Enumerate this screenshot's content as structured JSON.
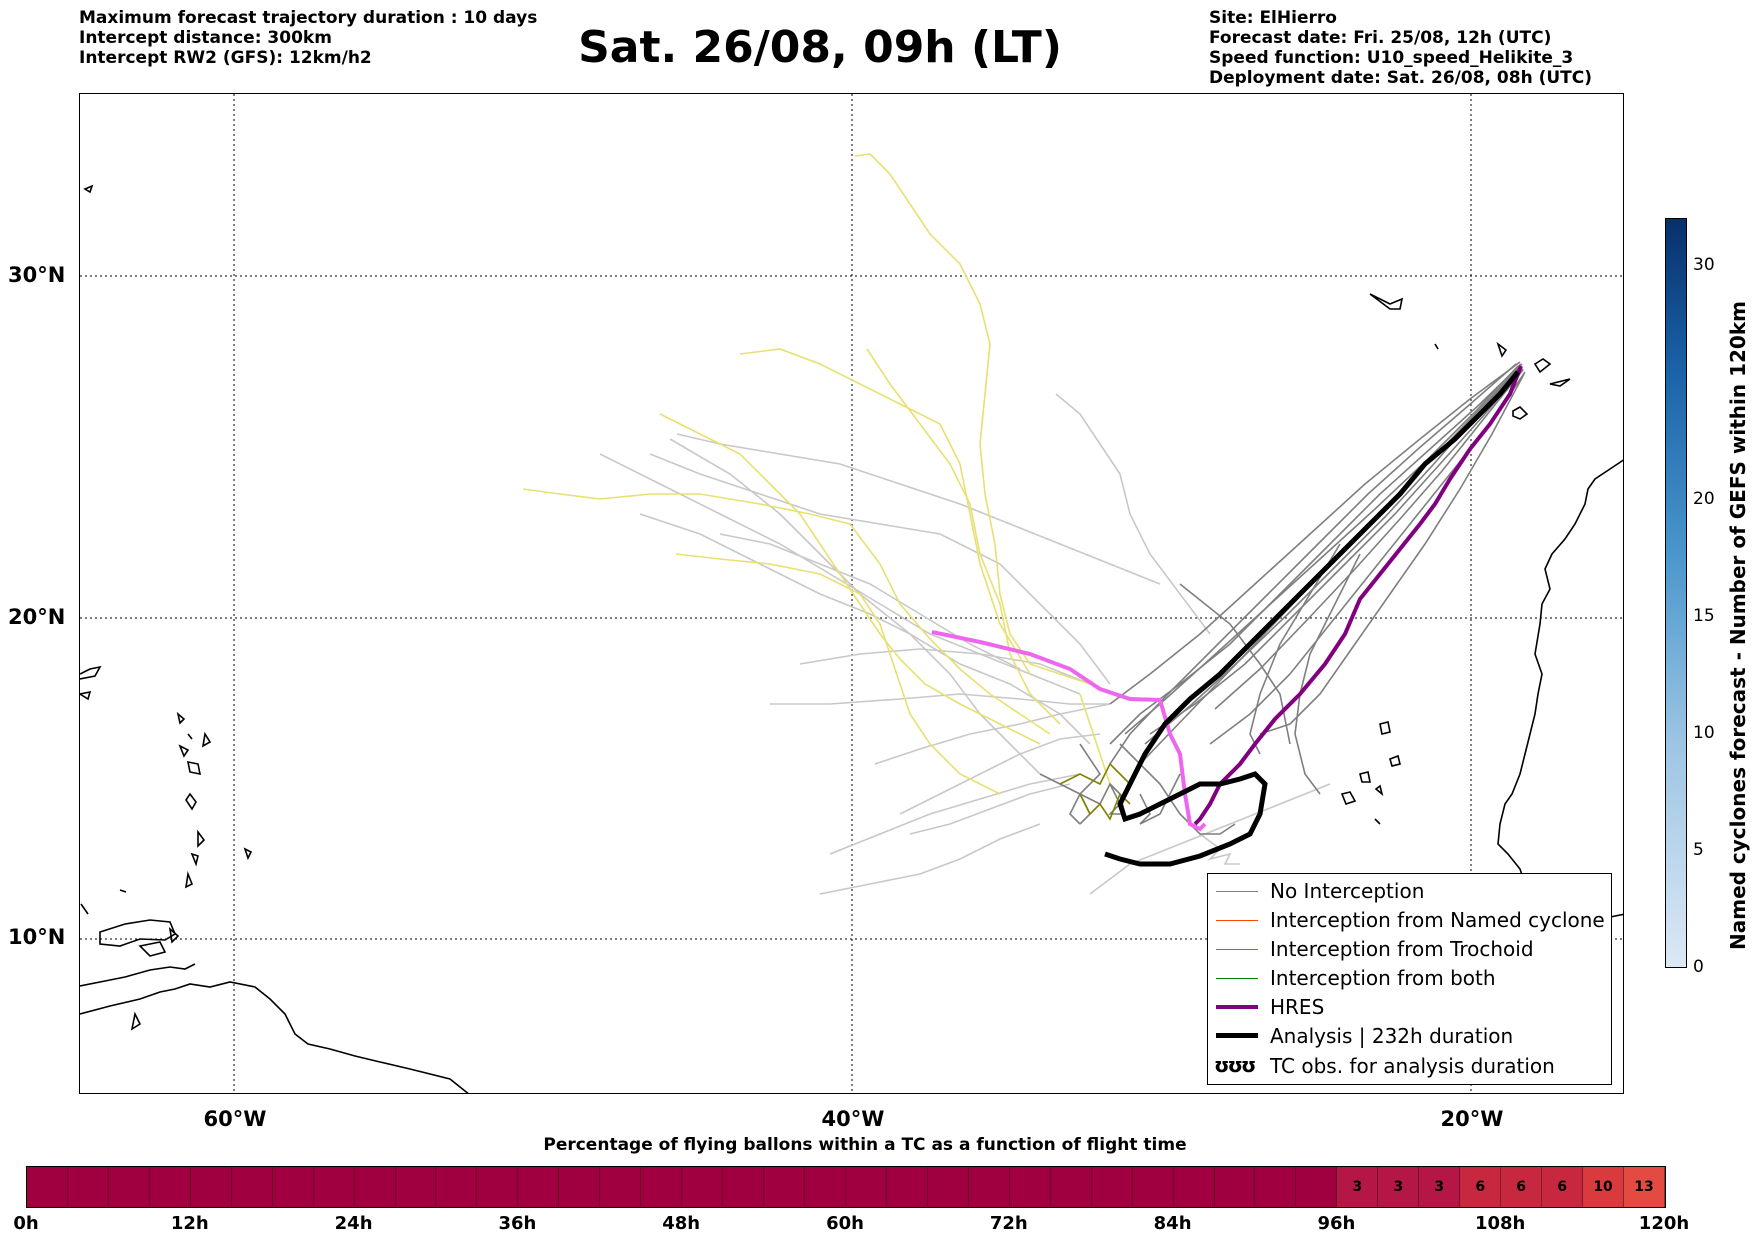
{
  "header_left": [
    "Maximum forecast trajectory duration : 10 days",
    "Intercept distance: 300km",
    "Intercept RW2 (GFS):  12km/h2"
  ],
  "title": "Sat. 26/08, 09h (LT)",
  "header_right": [
    "Site: ElHierro",
    "Forecast date: Fri. 25/08, 12h (UTC)",
    "Speed function: U10_speed_Helikite_3",
    "Deployment date: Sat. 26/08, 08h (UTC)"
  ],
  "map": {
    "lat_labels": [
      "30°N",
      "20°N",
      "10°N"
    ],
    "lon_labels": [
      "60°W",
      "40°W",
      "20°W"
    ],
    "colors": {
      "no_interception": "#7f7f7f",
      "named_cyclone": "#ff4500",
      "trochoid": "#808000",
      "both": "#008000",
      "hres": "#800080",
      "analysis": "#000000",
      "ensemble_light": "#c8c8c8",
      "ensemble_yellow": "#e8e070",
      "hres_pink": "#ee66ee"
    }
  },
  "legend": {
    "items": [
      {
        "label": "No Interception",
        "style": "no_interception"
      },
      {
        "label": "Interception from Named cyclone",
        "style": "named_cyclone"
      },
      {
        "label": "Interception from Trochoid",
        "style": "trochoid"
      },
      {
        "label": "Interception from both",
        "style": "both"
      },
      {
        "label": "HRES",
        "style": "hres"
      },
      {
        "label": "Analysis | 232h duration",
        "style": "analysis"
      },
      {
        "label": "TC obs. for analysis duration",
        "style": "tc_symbol"
      }
    ],
    "tc_symbol": "ʊʊʊ"
  },
  "colorbar": {
    "label": "Named cyclones forecast - Number of GEFS within 120km",
    "ticks": [
      "0",
      "5",
      "10",
      "15",
      "20",
      "30"
    ],
    "tick_values": [
      0,
      5,
      10,
      15,
      20,
      30
    ],
    "max": 32
  },
  "timebar": {
    "title": "Percentage of flying ballons within a TC as a function of flight time",
    "tick_labels": [
      "0h",
      "12h",
      "24h",
      "36h",
      "48h",
      "60h",
      "72h",
      "84h",
      "96h",
      "108h",
      "120h"
    ],
    "segments_hours": 120,
    "step_hours": 3,
    "values": [
      3,
      3,
      3,
      6,
      6,
      6,
      10,
      13
    ],
    "values_start_hour": 96,
    "colors": {
      "base": "#a0003f",
      "3": "#b41646",
      "6": "#c8283f",
      "10": "#d83a3e",
      "13": "#e24a42"
    }
  }
}
